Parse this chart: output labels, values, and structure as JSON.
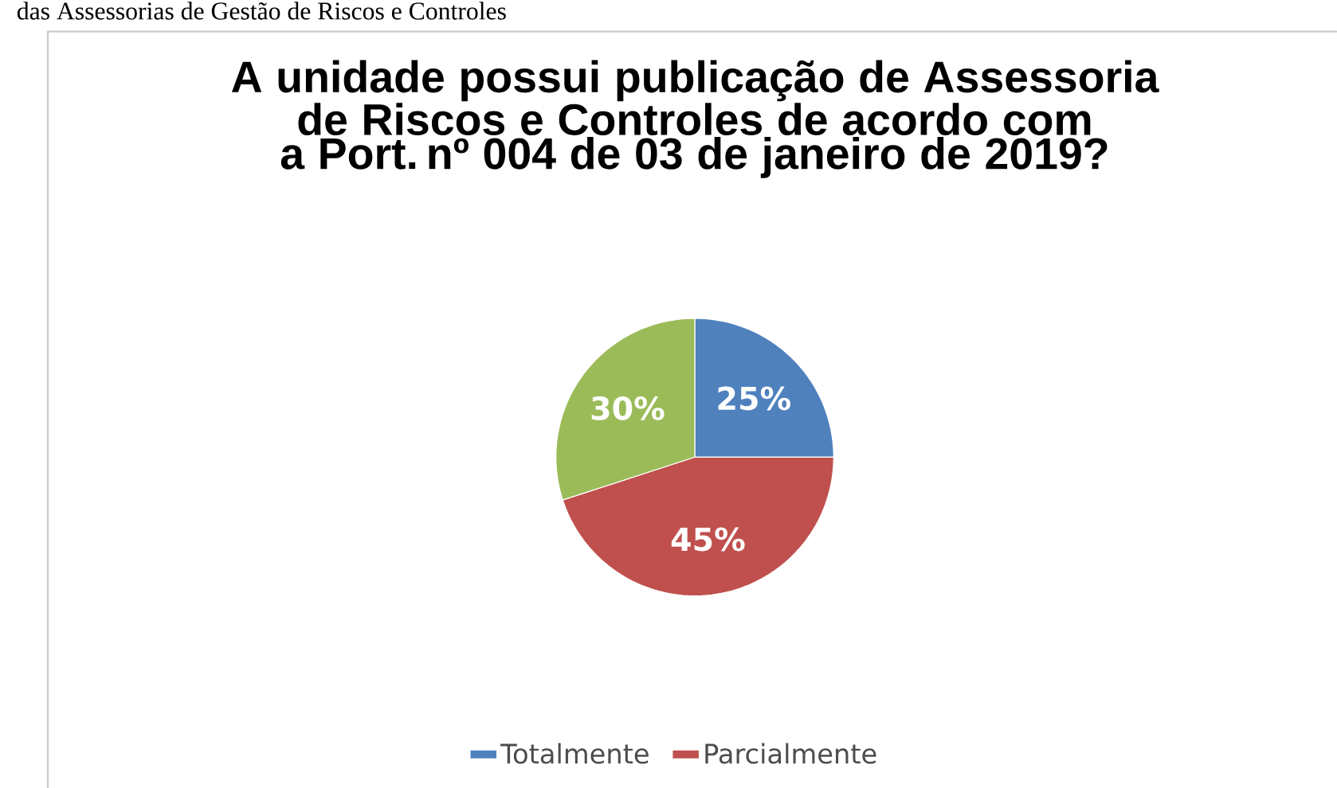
{
  "chart_data": {
    "type": "pie",
    "title": "A unidade possui publicação de Assessoria de Riscos e Controles de acordo com a Port. nº 004 de 03 de janeiro de 2019?",
    "categories": [
      "Totalmente",
      "Parcialmente",
      null
    ],
    "values": [
      25,
      45,
      30
    ],
    "colors": [
      "#4f81bd",
      "#c0504d",
      "#9bbb59"
    ],
    "value_labels": [
      "25%",
      "45%",
      "30%"
    ],
    "legend": "bottom",
    "annotations": [
      "das Assessorias de Gestão de Riscos e Controles"
    ]
  }
}
